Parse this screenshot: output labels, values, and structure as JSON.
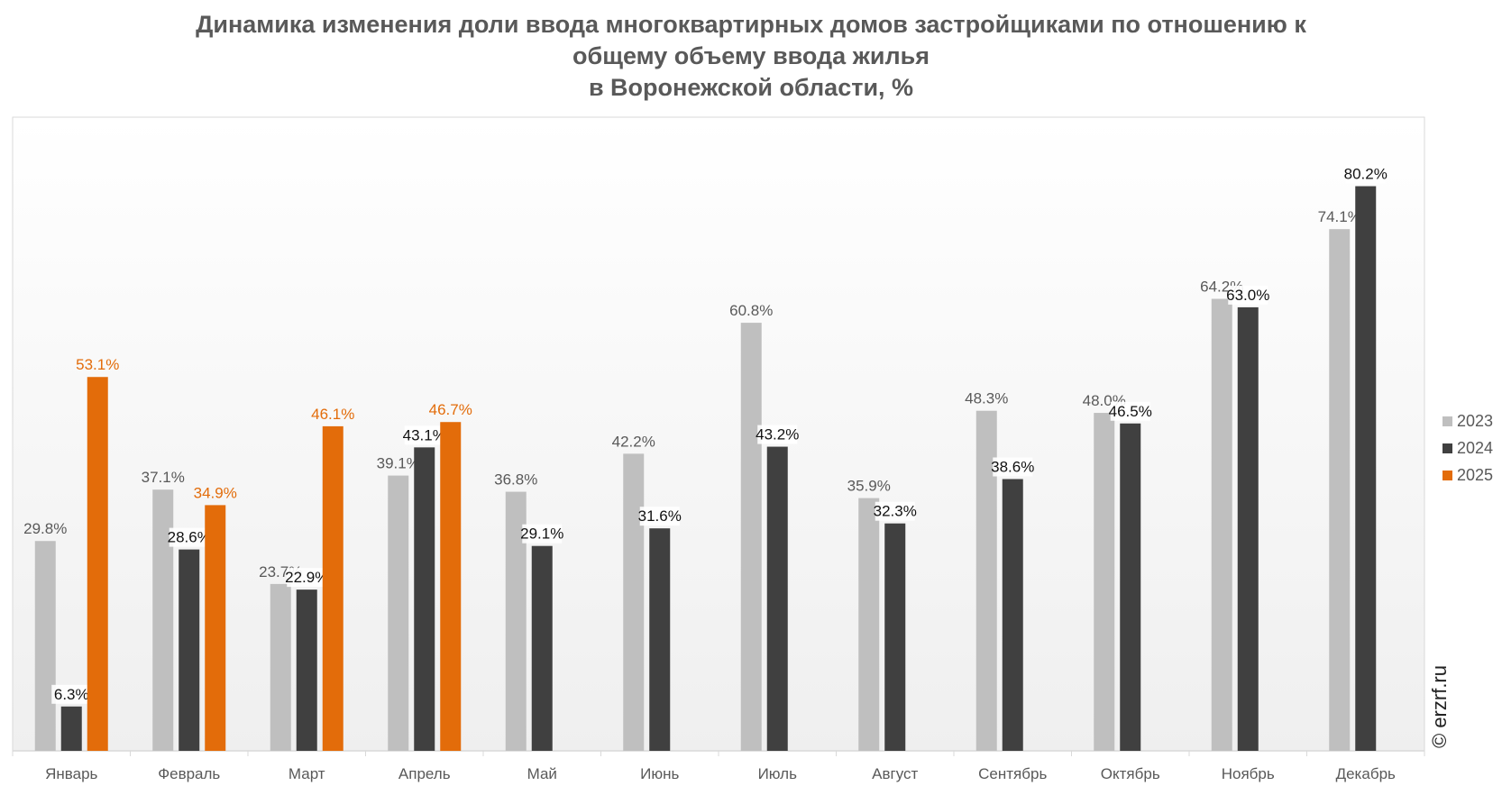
{
  "chart_data": {
    "type": "bar",
    "title_lines": [
      "Динамика изменения доли ввода многоквартирных домов застройщиками по отношению к",
      "общему объему ввода жилья",
      "в Воронежской области, %"
    ],
    "categories": [
      "Январь",
      "Февраль",
      "Март",
      "Апрель",
      "Май",
      "Июнь",
      "Июль",
      "Август",
      "Сентябрь",
      "Октябрь",
      "Ноябрь",
      "Декабрь"
    ],
    "series": [
      {
        "name": "2023",
        "color": "#bfbfbf",
        "label_color": "#595959",
        "values": [
          29.8,
          37.1,
          23.7,
          39.1,
          36.8,
          42.2,
          60.8,
          35.9,
          48.3,
          48.0,
          64.2,
          74.1
        ]
      },
      {
        "name": "2024",
        "color": "#404040",
        "label_color": "#111111",
        "values": [
          6.3,
          28.6,
          22.9,
          43.1,
          29.1,
          31.6,
          43.2,
          32.3,
          38.6,
          46.5,
          63.0,
          80.2
        ]
      },
      {
        "name": "2025",
        "color": "#e36c0a",
        "label_color": "#e36c0a",
        "values": [
          53.1,
          34.9,
          46.1,
          46.7,
          null,
          null,
          null,
          null,
          null,
          null,
          null,
          null
        ]
      }
    ],
    "value_suffix": "%",
    "ylim": [
      0,
      90
    ],
    "xlabel": "",
    "ylabel": "",
    "grid": false,
    "legend_position": "right"
  },
  "watermark": "© erzrf.ru"
}
